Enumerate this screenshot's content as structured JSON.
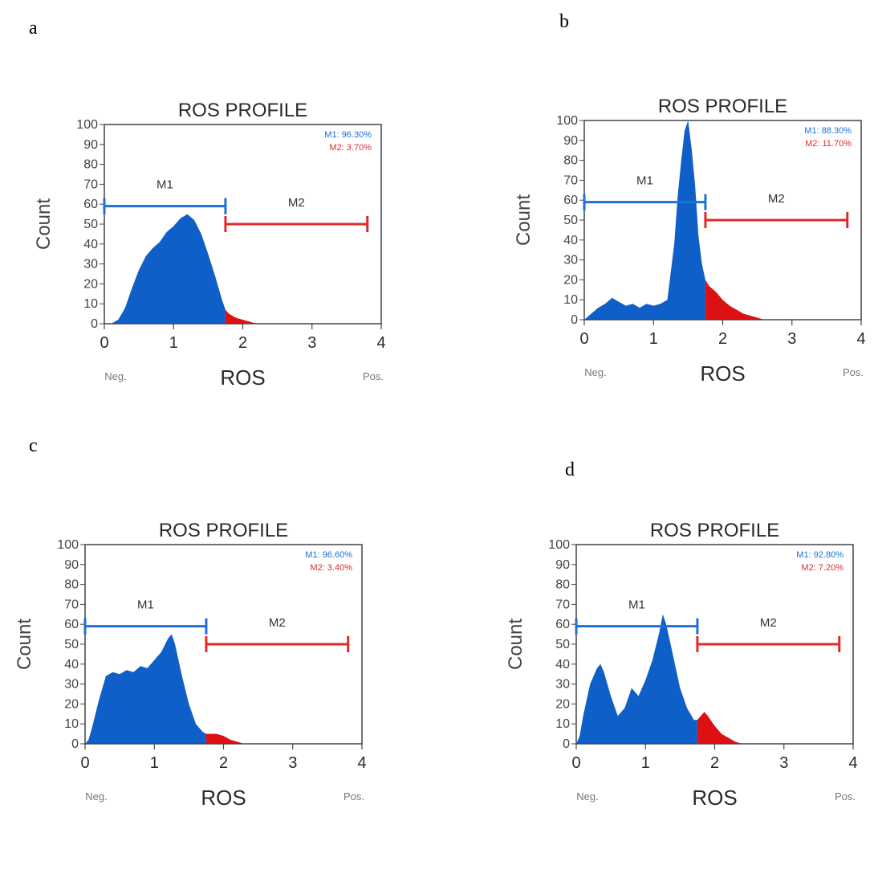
{
  "colors": {
    "gate_m1": "#1f6fd8",
    "gate_m2": "#e02a2a",
    "fill_m1": "#0f5fc9",
    "fill_m2": "#dd1111",
    "frame": "#444444"
  },
  "chart_data": [
    {
      "panel": "a",
      "type": "area",
      "title": "ROS PROFILE",
      "xlabel": "ROS",
      "ylabel": "Count",
      "x_left_label": "Neg.",
      "x_right_label": "Pos.",
      "xlim": [
        0,
        4
      ],
      "ylim": [
        0,
        100
      ],
      "xticks": [
        "0",
        "1",
        "2",
        "3",
        "4"
      ],
      "yticks": [
        "0",
        "10",
        "20",
        "30",
        "40",
        "50",
        "60",
        "70",
        "80",
        "90",
        "100"
      ],
      "gates": [
        {
          "name": "M1",
          "x0": 0,
          "x1": 1.75,
          "y": 59,
          "stat": "M1: 96.30%"
        },
        {
          "name": "M2",
          "x0": 1.75,
          "x1": 3.8,
          "y": 50,
          "stat": "M2: 3.70%"
        }
      ],
      "x": [
        0,
        0.1,
        0.2,
        0.3,
        0.4,
        0.5,
        0.6,
        0.7,
        0.8,
        0.9,
        1.0,
        1.1,
        1.2,
        1.3,
        1.4,
        1.5,
        1.6,
        1.7,
        1.75,
        1.8,
        1.9,
        2.0,
        2.1,
        2.2,
        2.3
      ],
      "values": [
        0,
        0,
        2,
        8,
        18,
        27,
        34,
        38,
        41,
        46,
        49,
        53,
        55,
        52,
        45,
        35,
        24,
        12,
        7,
        5,
        3,
        2,
        1,
        0,
        0
      ]
    },
    {
      "panel": "b",
      "type": "area",
      "title": "ROS PROFILE",
      "xlabel": "ROS",
      "ylabel": "Count",
      "x_left_label": "Neg.",
      "x_right_label": "Pos.",
      "xlim": [
        0,
        4
      ],
      "ylim": [
        0,
        100
      ],
      "xticks": [
        "0",
        "1",
        "2",
        "3",
        "4"
      ],
      "yticks": [
        "0",
        "10",
        "20",
        "30",
        "40",
        "50",
        "60",
        "70",
        "80",
        "90",
        "100"
      ],
      "gates": [
        {
          "name": "M1",
          "x0": 0,
          "x1": 1.75,
          "y": 59,
          "stat": "M1: 88.30%"
        },
        {
          "name": "M2",
          "x0": 1.75,
          "x1": 3.8,
          "y": 50,
          "stat": "M2: 11.70%"
        }
      ],
      "x": [
        0,
        0.1,
        0.2,
        0.3,
        0.4,
        0.5,
        0.6,
        0.7,
        0.8,
        0.9,
        1.0,
        1.1,
        1.2,
        1.3,
        1.35,
        1.4,
        1.45,
        1.5,
        1.55,
        1.6,
        1.65,
        1.7,
        1.75,
        1.8,
        1.9,
        2.0,
        2.1,
        2.2,
        2.3,
        2.4,
        2.5,
        2.6
      ],
      "values": [
        0,
        3,
        6,
        8,
        11,
        9,
        7,
        8,
        6,
        8,
        7,
        8,
        10,
        38,
        62,
        80,
        95,
        100,
        86,
        68,
        42,
        28,
        20,
        17,
        14,
        10,
        7,
        5,
        3,
        2,
        1,
        0
      ]
    },
    {
      "panel": "c",
      "type": "area",
      "title": "ROS PROFILE",
      "xlabel": "ROS",
      "ylabel": "Count",
      "x_left_label": "Neg.",
      "x_right_label": "Pos.",
      "xlim": [
        0,
        4
      ],
      "ylim": [
        0,
        100
      ],
      "xticks": [
        "0",
        "1",
        "2",
        "3",
        "4"
      ],
      "yticks": [
        "0",
        "10",
        "20",
        "30",
        "40",
        "50",
        "60",
        "70",
        "80",
        "90",
        "100"
      ],
      "gates": [
        {
          "name": "M1",
          "x0": 0,
          "x1": 1.75,
          "y": 59,
          "stat": "M1: 96.60%"
        },
        {
          "name": "M2",
          "x0": 1.75,
          "x1": 3.8,
          "y": 50,
          "stat": "M2: 3.40%"
        }
      ],
      "x": [
        0,
        0.05,
        0.1,
        0.2,
        0.3,
        0.4,
        0.5,
        0.6,
        0.7,
        0.8,
        0.9,
        1.0,
        1.1,
        1.2,
        1.25,
        1.3,
        1.4,
        1.5,
        1.6,
        1.7,
        1.75,
        1.8,
        1.9,
        2.0,
        2.1,
        2.2,
        2.3
      ],
      "values": [
        0,
        2,
        8,
        22,
        34,
        36,
        35,
        37,
        36,
        39,
        38,
        42,
        46,
        53,
        55,
        50,
        34,
        20,
        10,
        6,
        5,
        5,
        5,
        4,
        2,
        1,
        0
      ]
    },
    {
      "panel": "d",
      "type": "area",
      "title": "ROS PROFILE",
      "xlabel": "ROS",
      "ylabel": "Count",
      "x_left_label": "Neg.",
      "x_right_label": "Pos.",
      "xlim": [
        0,
        4
      ],
      "ylim": [
        0,
        100
      ],
      "xticks": [
        "0",
        "1",
        "2",
        "3",
        "4"
      ],
      "yticks": [
        "0",
        "10",
        "20",
        "30",
        "40",
        "50",
        "60",
        "70",
        "80",
        "90",
        "100"
      ],
      "gates": [
        {
          "name": "M1",
          "x0": 0,
          "x1": 1.75,
          "y": 59,
          "stat": "M1: 92.80%"
        },
        {
          "name": "M2",
          "x0": 1.75,
          "x1": 3.8,
          "y": 50,
          "stat": "M2: 7.20%"
        }
      ],
      "x": [
        0,
        0.05,
        0.1,
        0.2,
        0.3,
        0.35,
        0.4,
        0.5,
        0.6,
        0.7,
        0.8,
        0.9,
        1.0,
        1.1,
        1.2,
        1.25,
        1.3,
        1.4,
        1.5,
        1.6,
        1.7,
        1.75,
        1.8,
        1.85,
        1.9,
        2.0,
        2.1,
        2.2,
        2.3,
        2.4
      ],
      "values": [
        0,
        4,
        14,
        30,
        38,
        40,
        36,
        24,
        14,
        18,
        28,
        24,
        32,
        42,
        56,
        65,
        60,
        44,
        28,
        18,
        12,
        12,
        14,
        16,
        14,
        9,
        5,
        3,
        1,
        0
      ]
    }
  ]
}
